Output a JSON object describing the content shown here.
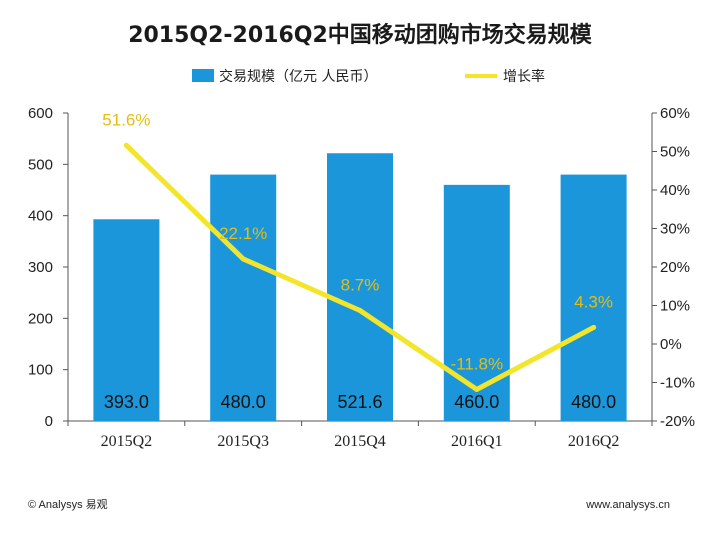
{
  "title": "2015Q2-2016Q2中国移动团购市场交易规模",
  "legend": {
    "bar_label": "交易规模（亿元 人民币）",
    "line_label": "增长率"
  },
  "colors": {
    "bar": "#1B96DA",
    "line": "#F2E52A",
    "line_label": "#E3BE13",
    "axis": "#555555"
  },
  "footer": {
    "left": "© Analysys 易观",
    "right": "www.analysys.cn"
  },
  "chart_data": {
    "type": "bar",
    "categories": [
      "2015Q2",
      "2015Q3",
      "2015Q4",
      "2016Q1",
      "2016Q2"
    ],
    "series": [
      {
        "name": "交易规模（亿元 人民币）",
        "type": "bar",
        "axis": "left",
        "values": [
          393.0,
          480.0,
          521.6,
          460.0,
          480.0
        ],
        "labels": [
          "393.0",
          "480.0",
          "521.6",
          "460.0",
          "480.0"
        ]
      },
      {
        "name": "增长率",
        "type": "line",
        "axis": "right",
        "values": [
          51.6,
          22.1,
          8.7,
          -11.8,
          4.3
        ],
        "labels": [
          "51.6%",
          "22.1%",
          "8.7%",
          "-11.8%",
          "4.3%"
        ]
      }
    ],
    "y_left": {
      "min": 0,
      "max": 600,
      "ticks": [
        0,
        100,
        200,
        300,
        400,
        500,
        600
      ],
      "tick_labels": [
        "0",
        "100",
        "200",
        "300",
        "400",
        "500",
        "600"
      ]
    },
    "y_right": {
      "min": -20,
      "max": 60,
      "ticks": [
        -20,
        -10,
        0,
        10,
        20,
        30,
        40,
        50,
        60
      ],
      "tick_labels": [
        "-20%",
        "-10%",
        "0%",
        "10%",
        "20%",
        "30%",
        "40%",
        "50%",
        "60%"
      ]
    },
    "grid": false,
    "legend_position": "top-center"
  }
}
